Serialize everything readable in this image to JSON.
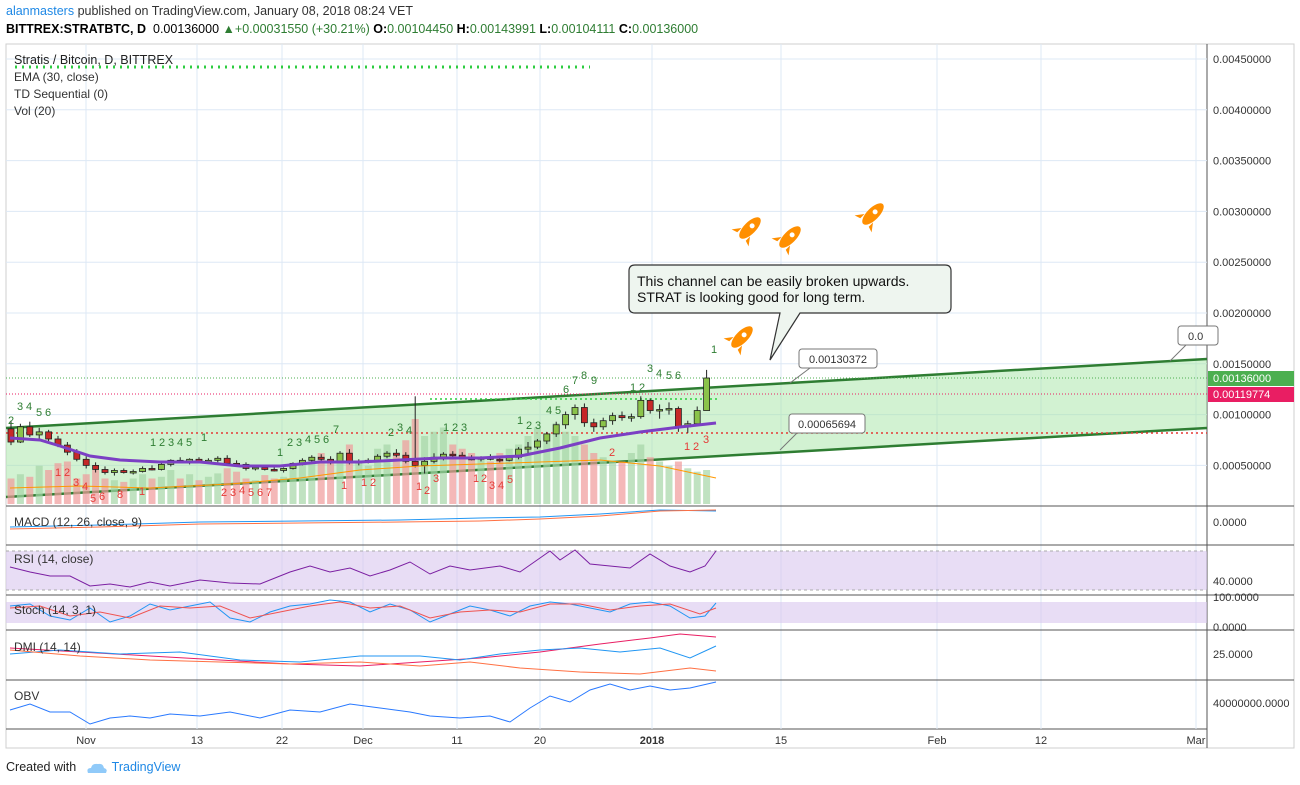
{
  "header": {
    "author": "alanmasters",
    "published": "published on TradingView.com, January 08, 2018 08:24 VET",
    "symbol": "BITTREX:STRATBTC, D",
    "last": "0.00136000",
    "change": "+0.00031550 (+30.21%)",
    "o_label": "O:",
    "o": "0.00104450",
    "h_label": "H:",
    "h": "0.00143991",
    "l_label": "L:",
    "l": "0.00104111",
    "c_label": "C:",
    "c": "0.00136000"
  },
  "legend": {
    "title": "Stratis / Bitcoin, D, BITTREX",
    "ema": "EMA (30, close)",
    "td": "TD Sequential (0)",
    "vol": "Vol (20)"
  },
  "annotation": {
    "line1": "This channel can be easily broken upwards.",
    "line2": "STRAT is looking good for long term."
  },
  "labels": {
    "upper_point": "0.00130372",
    "lower_point": "0.00065694",
    "cut_label": "0.0"
  },
  "price_axis": {
    "ticks": [
      "0.00450000",
      "0.00400000",
      "0.00350000",
      "0.00300000",
      "0.00250000",
      "0.00200000",
      "0.00150000",
      "0.00100000",
      "0.00050000"
    ],
    "last_price_tag": "0.00136000",
    "ema_tag": "0.00119774",
    "last_color": "#4caf50",
    "ema_color": "#e91e63"
  },
  "time_axis": {
    "labels": [
      "Nov",
      "13",
      "22",
      "Dec",
      "11",
      "20",
      "2018",
      "15",
      "Feb",
      "12",
      "Mar"
    ]
  },
  "indicators": {
    "macd": {
      "label": "MACD (12, 26, close, 9)",
      "tick": "0.0000"
    },
    "rsi": {
      "label": "RSI (14, close)",
      "tick": "40.0000"
    },
    "stoch": {
      "label": "Stoch (14, 3, 1)",
      "tick_top": "100.0000",
      "tick_bottom": "0.0000"
    },
    "dmi": {
      "label": "DMI (14, 14)",
      "tick": "25.0000"
    },
    "obv": {
      "label": "OBV",
      "tick": "40000000.0000"
    }
  },
  "footer": {
    "created": "Created with",
    "brand": "TradingView"
  },
  "chart_data": {
    "type": "candlestick",
    "symbol": "BITTREX:STRATBTC",
    "y_range": [
      0.0002,
      0.0047
    ],
    "candles": [
      {
        "o": 0.00086,
        "h": 0.00094,
        "l": 0.0007,
        "c": 0.00073
      },
      {
        "o": 0.00073,
        "h": 0.00091,
        "l": 0.00072,
        "c": 0.00088
      },
      {
        "o": 0.00088,
        "h": 0.00093,
        "l": 0.00078,
        "c": 0.0008
      },
      {
        "o": 0.0008,
        "h": 0.00087,
        "l": 0.00076,
        "c": 0.00083
      },
      {
        "o": 0.00083,
        "h": 0.00085,
        "l": 0.00074,
        "c": 0.00076
      },
      {
        "o": 0.00076,
        "h": 0.00079,
        "l": 0.00068,
        "c": 0.0007
      },
      {
        "o": 0.0007,
        "h": 0.00073,
        "l": 0.0006,
        "c": 0.00063
      },
      {
        "o": 0.00063,
        "h": 0.00066,
        "l": 0.00054,
        "c": 0.00056
      },
      {
        "o": 0.00056,
        "h": 0.00059,
        "l": 0.00047,
        "c": 0.0005
      },
      {
        "o": 0.0005,
        "h": 0.00053,
        "l": 0.00043,
        "c": 0.00046
      },
      {
        "o": 0.00046,
        "h": 0.00049,
        "l": 0.00041,
        "c": 0.00043
      },
      {
        "o": 0.00043,
        "h": 0.00047,
        "l": 0.0004,
        "c": 0.00045
      },
      {
        "o": 0.00045,
        "h": 0.00047,
        "l": 0.00042,
        "c": 0.00043
      },
      {
        "o": 0.00043,
        "h": 0.00046,
        "l": 0.00041,
        "c": 0.00044
      },
      {
        "o": 0.00044,
        "h": 0.00049,
        "l": 0.00043,
        "c": 0.00047
      },
      {
        "o": 0.00047,
        "h": 0.0005,
        "l": 0.00045,
        "c": 0.00046
      },
      {
        "o": 0.00046,
        "h": 0.00052,
        "l": 0.00045,
        "c": 0.00051
      },
      {
        "o": 0.00051,
        "h": 0.00056,
        "l": 0.00049,
        "c": 0.00055
      },
      {
        "o": 0.00055,
        "h": 0.00058,
        "l": 0.00052,
        "c": 0.00053
      },
      {
        "o": 0.00053,
        "h": 0.00057,
        "l": 0.00051,
        "c": 0.00056
      },
      {
        "o": 0.00056,
        "h": 0.00058,
        "l": 0.00053,
        "c": 0.00054
      },
      {
        "o": 0.00054,
        "h": 0.00057,
        "l": 0.00052,
        "c": 0.00055
      },
      {
        "o": 0.00055,
        "h": 0.00059,
        "l": 0.00053,
        "c": 0.00057
      },
      {
        "o": 0.00057,
        "h": 0.0006,
        "l": 0.0005,
        "c": 0.00052
      },
      {
        "o": 0.00052,
        "h": 0.00055,
        "l": 0.00049,
        "c": 0.00051
      },
      {
        "o": 0.00051,
        "h": 0.00053,
        "l": 0.00045,
        "c": 0.00047
      },
      {
        "o": 0.00047,
        "h": 0.0005,
        "l": 0.00045,
        "c": 0.00048
      },
      {
        "o": 0.00048,
        "h": 0.0005,
        "l": 0.00045,
        "c": 0.00046
      },
      {
        "o": 0.00046,
        "h": 0.00049,
        "l": 0.00044,
        "c": 0.00045
      },
      {
        "o": 0.00045,
        "h": 0.00048,
        "l": 0.00043,
        "c": 0.00047
      },
      {
        "o": 0.00047,
        "h": 0.00053,
        "l": 0.00046,
        "c": 0.00052
      },
      {
        "o": 0.00052,
        "h": 0.00057,
        "l": 0.0005,
        "c": 0.00055
      },
      {
        "o": 0.00055,
        "h": 0.0006,
        "l": 0.00053,
        "c": 0.00058
      },
      {
        "o": 0.00058,
        "h": 0.00061,
        "l": 0.00054,
        "c": 0.00056
      },
      {
        "o": 0.00056,
        "h": 0.00059,
        "l": 0.00051,
        "c": 0.00053
      },
      {
        "o": 0.00053,
        "h": 0.00064,
        "l": 0.00052,
        "c": 0.00062
      },
      {
        "o": 0.00062,
        "h": 0.00066,
        "l": 0.00051,
        "c": 0.00053
      },
      {
        "o": 0.00053,
        "h": 0.00056,
        "l": 0.0005,
        "c": 0.00054
      },
      {
        "o": 0.00054,
        "h": 0.00057,
        "l": 0.00052,
        "c": 0.00055
      },
      {
        "o": 0.00055,
        "h": 0.00061,
        "l": 0.00054,
        "c": 0.00059
      },
      {
        "o": 0.00059,
        "h": 0.00064,
        "l": 0.00057,
        "c": 0.00062
      },
      {
        "o": 0.00062,
        "h": 0.00066,
        "l": 0.00058,
        "c": 0.0006
      },
      {
        "o": 0.0006,
        "h": 0.00063,
        "l": 0.00052,
        "c": 0.00054
      },
      {
        "o": 0.00054,
        "h": 0.00118,
        "l": 0.00048,
        "c": 0.0005
      },
      {
        "o": 0.0005,
        "h": 0.00058,
        "l": 0.00042,
        "c": 0.00054
      },
      {
        "o": 0.00054,
        "h": 0.00062,
        "l": 0.00052,
        "c": 0.00058
      },
      {
        "o": 0.00058,
        "h": 0.00063,
        "l": 0.00055,
        "c": 0.00061
      },
      {
        "o": 0.00061,
        "h": 0.00064,
        "l": 0.00058,
        "c": 0.0006
      },
      {
        "o": 0.0006,
        "h": 0.00063,
        "l": 0.00056,
        "c": 0.00057
      },
      {
        "o": 0.00057,
        "h": 0.0006,
        "l": 0.00055,
        "c": 0.00056
      },
      {
        "o": 0.00056,
        "h": 0.00059,
        "l": 0.00054,
        "c": 0.00058
      },
      {
        "o": 0.00058,
        "h": 0.00061,
        "l": 0.00055,
        "c": 0.00056
      },
      {
        "o": 0.00056,
        "h": 0.00059,
        "l": 0.00053,
        "c": 0.00055
      },
      {
        "o": 0.00055,
        "h": 0.0006,
        "l": 0.00054,
        "c": 0.00058
      },
      {
        "o": 0.00058,
        "h": 0.00068,
        "l": 0.00056,
        "c": 0.00066
      },
      {
        "o": 0.00066,
        "h": 0.00073,
        "l": 0.00062,
        "c": 0.00068
      },
      {
        "o": 0.00068,
        "h": 0.00076,
        "l": 0.00066,
        "c": 0.00074
      },
      {
        "o": 0.00074,
        "h": 0.00083,
        "l": 0.00071,
        "c": 0.00081
      },
      {
        "o": 0.00081,
        "h": 0.00093,
        "l": 0.00078,
        "c": 0.0009
      },
      {
        "o": 0.0009,
        "h": 0.00103,
        "l": 0.00086,
        "c": 0.001
      },
      {
        "o": 0.001,
        "h": 0.0011,
        "l": 0.00095,
        "c": 0.00107
      },
      {
        "o": 0.00107,
        "h": 0.00111,
        "l": 0.00088,
        "c": 0.00092
      },
      {
        "o": 0.00092,
        "h": 0.00096,
        "l": 0.00083,
        "c": 0.00088
      },
      {
        "o": 0.00088,
        "h": 0.00097,
        "l": 0.00085,
        "c": 0.00094
      },
      {
        "o": 0.00094,
        "h": 0.00102,
        "l": 0.0009,
        "c": 0.00099
      },
      {
        "o": 0.00099,
        "h": 0.00103,
        "l": 0.00094,
        "c": 0.00097
      },
      {
        "o": 0.00097,
        "h": 0.00101,
        "l": 0.00093,
        "c": 0.00098
      },
      {
        "o": 0.00098,
        "h": 0.00118,
        "l": 0.00096,
        "c": 0.00114
      },
      {
        "o": 0.00114,
        "h": 0.00116,
        "l": 0.00101,
        "c": 0.00104
      },
      {
        "o": 0.00104,
        "h": 0.0011,
        "l": 0.00096,
        "c": 0.00105
      },
      {
        "o": 0.00105,
        "h": 0.00112,
        "l": 0.001,
        "c": 0.00106
      },
      {
        "o": 0.00106,
        "h": 0.00108,
        "l": 0.00083,
        "c": 0.00088
      },
      {
        "o": 0.00088,
        "h": 0.00094,
        "l": 0.00082,
        "c": 0.00091
      },
      {
        "o": 0.00091,
        "h": 0.00108,
        "l": 0.00089,
        "c": 0.00104
      },
      {
        "o": 0.00104,
        "h": 0.00144,
        "l": 0.00104,
        "c": 0.00136
      }
    ],
    "volume": [
      0.3,
      0.35,
      0.32,
      0.45,
      0.4,
      0.48,
      0.5,
      0.3,
      0.35,
      0.4,
      0.3,
      0.28,
      0.26,
      0.3,
      0.35,
      0.3,
      0.32,
      0.4,
      0.3,
      0.35,
      0.28,
      0.32,
      0.36,
      0.42,
      0.38,
      0.3,
      0.28,
      0.34,
      0.3,
      0.32,
      0.45,
      0.5,
      0.55,
      0.6,
      0.5,
      0.6,
      0.7,
      0.5,
      0.45,
      0.65,
      0.7,
      0.6,
      0.75,
      1.0,
      0.8,
      0.85,
      0.9,
      0.7,
      0.65,
      0.6,
      0.55,
      0.5,
      0.6,
      0.65,
      0.7,
      0.8,
      0.9,
      0.75,
      0.95,
      0.85,
      0.8,
      0.7,
      0.6,
      0.55,
      0.5,
      0.5,
      0.6,
      0.7,
      0.55,
      0.5,
      0.45,
      0.5,
      0.42,
      0.38,
      0.4
    ]
  }
}
